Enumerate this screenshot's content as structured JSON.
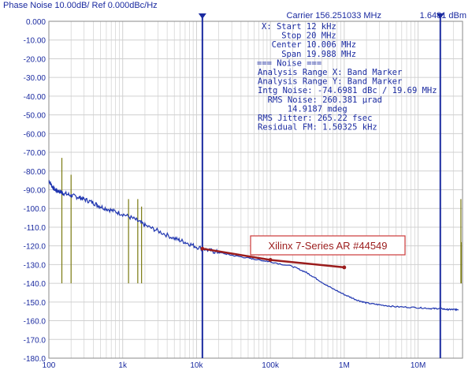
{
  "header": {
    "title": "Phase Noise 10.00dB/ Ref 0.000dBc/Hz",
    "carrier": "Carrier 156.251033 MHz",
    "carrier_power": "1.6481 dBm"
  },
  "info_panel": {
    "lines": [
      "X: Start 12 kHz",
      "Stop 20 MHz",
      "Center 10.006 MHz",
      "Span 19.988 MHz",
      "=== Noise ===",
      "Analysis Range X: Band Marker",
      "Analysis Range Y: Band Marker",
      "Intg Noise: -74.6981 dBc / 19.69 MHz",
      "RMS Noise: 260.381 µrad",
      "14.9187 mdeg",
      "RMS Jitter: 265.22 fsec",
      "Residual FM: 1.50325 kHz"
    ]
  },
  "annotation": {
    "text": "Xilinx 7-Series AR #44549",
    "color": "#9b1c1c",
    "box_color": "#cc3a3a",
    "line_points": [
      [
        12000,
        -121.5
      ],
      [
        100000,
        -127.5
      ],
      [
        1000000,
        -131.5
      ]
    ]
  },
  "colors": {
    "trace": "#1f35b0",
    "grid": "#d0d0d0",
    "axis_text": "#1a2aa0",
    "marker": "#1a2aa0",
    "spur": "#7a7a10"
  },
  "chart_data": {
    "type": "line",
    "x_scale": "log",
    "xlim": [
      100,
      40000000
    ],
    "ylim": [
      -180,
      0
    ],
    "x_ticks": [
      {
        "value": 100,
        "label": "100"
      },
      {
        "value": 1000,
        "label": "1k"
      },
      {
        "value": 10000,
        "label": "10k"
      },
      {
        "value": 100000,
        "label": "100k"
      },
      {
        "value": 1000000,
        "label": "1M"
      },
      {
        "value": 10000000,
        "label": "10M"
      }
    ],
    "y_ticks": [
      {
        "value": 0,
        "label": "0.000"
      },
      {
        "value": -10,
        "label": "-10.00"
      },
      {
        "value": -20,
        "label": "-20.00"
      },
      {
        "value": -30,
        "label": "-30.00"
      },
      {
        "value": -40,
        "label": "-40.00"
      },
      {
        "value": -50,
        "label": "-50.00"
      },
      {
        "value": -60,
        "label": "-60.00"
      },
      {
        "value": -70,
        "label": "-70.00"
      },
      {
        "value": -80,
        "label": "-80.00"
      },
      {
        "value": -90,
        "label": "-90.00"
      },
      {
        "value": -100,
        "label": "-100.0"
      },
      {
        "value": -110,
        "label": "-110.0"
      },
      {
        "value": -120,
        "label": "-120.0"
      },
      {
        "value": -130,
        "label": "-130.0"
      },
      {
        "value": -140,
        "label": "-140.0"
      },
      {
        "value": -150,
        "label": "-150.0"
      },
      {
        "value": -160,
        "label": "-160.0"
      },
      {
        "value": -170,
        "label": "-170.0"
      },
      {
        "value": -180,
        "label": "-180.0"
      }
    ],
    "grid": true,
    "band_markers": [
      12000,
      20000000
    ],
    "series": [
      {
        "points": [
          [
            100,
            -85
          ],
          [
            110,
            -88
          ],
          [
            120,
            -90
          ],
          [
            140,
            -91
          ],
          [
            160,
            -92
          ],
          [
            200,
            -93
          ],
          [
            250,
            -94
          ],
          [
            300,
            -95
          ],
          [
            400,
            -97
          ],
          [
            500,
            -99
          ],
          [
            700,
            -101
          ],
          [
            1000,
            -103
          ],
          [
            1500,
            -106
          ],
          [
            2000,
            -109
          ],
          [
            3000,
            -112
          ],
          [
            5000,
            -116
          ],
          [
            7000,
            -118
          ],
          [
            10000,
            -120.5
          ],
          [
            15000,
            -122.5
          ],
          [
            20000,
            -123.5
          ],
          [
            30000,
            -125
          ],
          [
            50000,
            -126.5
          ],
          [
            70000,
            -127.5
          ],
          [
            100000,
            -128.5
          ],
          [
            200000,
            -131
          ],
          [
            300000,
            -134
          ],
          [
            400000,
            -137
          ],
          [
            600000,
            -141.5
          ],
          [
            1000000,
            -146
          ],
          [
            1500000,
            -149
          ],
          [
            2000000,
            -150.5
          ],
          [
            3000000,
            -151.5
          ],
          [
            5000000,
            -152.5
          ],
          [
            10000000,
            -153
          ],
          [
            15000000,
            -153.5
          ],
          [
            20000000,
            -153.5
          ],
          [
            25000000,
            -154
          ],
          [
            30000000,
            -154
          ],
          [
            35000000,
            -154
          ]
        ]
      }
    ],
    "spurs": [
      [
        150,
        -73
      ],
      [
        200,
        -82
      ],
      [
        1200,
        -95
      ],
      [
        1600,
        -95
      ],
      [
        1800,
        -99
      ],
      [
        38000000,
        -95
      ],
      [
        38500000,
        -118
      ]
    ]
  }
}
